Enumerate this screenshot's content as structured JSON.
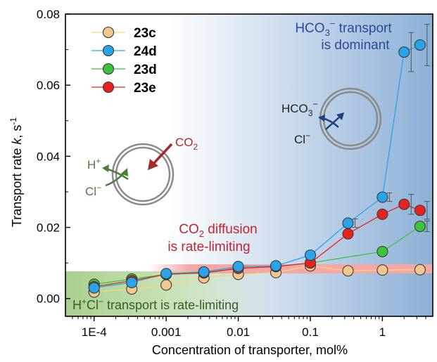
{
  "chart_data": {
    "type": "scatter",
    "title": "",
    "xlabel": "Concentration of transporter, mol%",
    "ylabel_prefix": "Transport rate ",
    "ylabel_k": "k",
    "ylabel_unit": ", s",
    "ylabel_exp": "-1",
    "x_scale": "log",
    "xlim": [
      4e-05,
      5
    ],
    "ylim": [
      -0.005,
      0.08
    ],
    "x_ticks": [
      {
        "value": 0.0001,
        "label": "1E-4"
      },
      {
        "value": 0.001,
        "label": "0.001"
      },
      {
        "value": 0.01,
        "label": "0.01"
      },
      {
        "value": 0.1,
        "label": "0.1"
      },
      {
        "value": 1,
        "label": "1"
      }
    ],
    "y_ticks": [
      {
        "value": 0,
        "label": "0.00"
      },
      {
        "value": 0.02,
        "label": "0.02"
      },
      {
        "value": 0.04,
        "label": "0.04"
      },
      {
        "value": 0.06,
        "label": "0.06"
      },
      {
        "value": 0.08,
        "label": "0.08"
      }
    ],
    "grid": false,
    "legend_position": "top-left",
    "series": [
      {
        "name": "23c",
        "color": "#f3c890",
        "line_color": "#f4d77a",
        "x": [
          0.0001,
          0.000333,
          0.001,
          0.00333,
          0.01,
          0.0333,
          0.1,
          0.333,
          1,
          3.33
        ],
        "y": [
          0.0018,
          0.0027,
          0.0038,
          0.0058,
          0.0068,
          0.0073,
          0.0092,
          0.0078,
          0.008,
          0.0081
        ],
        "err": [
          0,
          0,
          0,
          0,
          0,
          0,
          0,
          0,
          0,
          0
        ]
      },
      {
        "name": "24d",
        "color": "#29a3ea",
        "line_color": "#29a3ea",
        "x": [
          0.0001,
          0.000333,
          0.001,
          0.00333,
          0.01,
          0.0333,
          0.1,
          0.333,
          1,
          2,
          3.33
        ],
        "y": [
          0.003,
          0.0045,
          0.007,
          0.0075,
          0.009,
          0.0092,
          0.0122,
          0.0212,
          0.0285,
          0.0693,
          0.0713
        ],
        "err": [
          0,
          0,
          0,
          0,
          0,
          0,
          0,
          0.0012,
          0.0012,
          0.0055,
          0.0058
        ]
      },
      {
        "name": "23d",
        "color": "#3cc33c",
        "line_color": "#3cc33c",
        "x": [
          0.0001,
          0.000333,
          0.001,
          0.00333,
          0.01,
          0.0333,
          0.1,
          1,
          3.33
        ],
        "y": [
          0.004,
          0.0055,
          0.0068,
          0.0073,
          0.0085,
          0.009,
          0.01,
          0.0132,
          0.0203
        ],
        "err": [
          0,
          0,
          0,
          0,
          0,
          0,
          0,
          0,
          0.0015
        ]
      },
      {
        "name": "23e",
        "color": "#e8231f",
        "line_color": "#e8231f",
        "x": [
          0.0001,
          0.000333,
          0.001,
          0.00333,
          0.01,
          0.0333,
          0.1,
          0.333,
          1,
          2,
          3.33
        ],
        "y": [
          0.0033,
          0.005,
          0.0068,
          0.0072,
          0.0085,
          0.009,
          0.01,
          0.0182,
          0.0237,
          0.0265,
          0.0248
        ],
        "err": [
          0,
          0,
          0,
          0,
          0,
          0,
          0,
          0,
          0,
          0.0028,
          0.0025
        ]
      }
    ],
    "regions": {
      "bicarbonate": {
        "line1_a": "HCO",
        "line1_sub": "3",
        "line1_sup": "−",
        "line1_b": " transport",
        "line2": "is dominant"
      },
      "co2": {
        "line1_a": "CO",
        "line1_sub": "2",
        "line1_b": " diffusion",
        "line2": "is rate-limiting"
      },
      "hcl": {
        "a": "H",
        "sup1": "+",
        "b": "Cl",
        "sup2": "−",
        "c": " transport is rate-limiting"
      }
    },
    "annotations": {
      "co2_label": {
        "a": "CO",
        "sub": "2"
      },
      "h_plus": {
        "a": "H",
        "sup": "+"
      },
      "cl_left": {
        "a": "Cl",
        "sup": "−"
      },
      "hco3": {
        "a": "HCO",
        "sub": "3",
        "sup": "−"
      },
      "cl_right": {
        "a": "Cl",
        "sup": "−"
      }
    },
    "colors": {
      "blue_region": "#2f6fb5",
      "red_band": "#f7a6a6",
      "green_band": "#a9d08e",
      "co2_arrow": "#a52a2a",
      "green_arrow": "#4d7c3a",
      "navy_arrow": "#1f3f7a",
      "region_text_red": "#c0262d",
      "region_text_blue": "#2c4a9a",
      "region_text_green": "#3b5a2a"
    }
  }
}
